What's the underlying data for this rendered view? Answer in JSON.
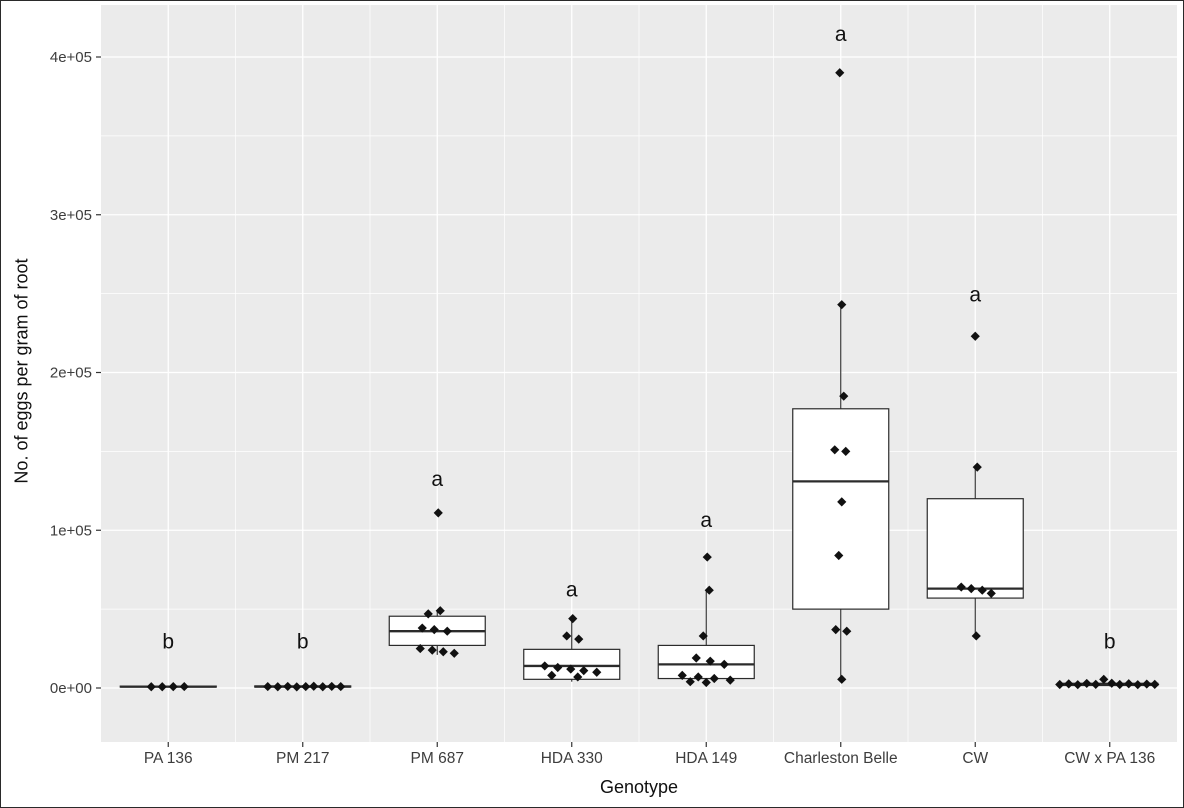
{
  "figure": {
    "y_axis_title": "No. of eggs per gram of root",
    "x_axis_title": "Genotype"
  },
  "chart_data": {
    "type": "boxplot",
    "title": "",
    "xlabel": "Genotype",
    "ylabel": "No. of eggs per gram of root",
    "ylim": [
      -34000,
      433000
    ],
    "grid": "on",
    "legend": "none",
    "colors": {
      "panel": "#ebebeb",
      "grid": "#ffffff",
      "box_fill": "#ffffff",
      "box_stroke": "#2b2b2b",
      "point": "#111111",
      "axis_text": "#3d3d3d",
      "letter_text": "#111111"
    },
    "y_ticks": [
      {
        "value": 0,
        "label": "0e+00"
      },
      {
        "value": 100000,
        "label": "1e+05"
      },
      {
        "value": 200000,
        "label": "2e+05"
      },
      {
        "value": 300000,
        "label": "3e+05"
      },
      {
        "value": 400000,
        "label": "4e+05"
      }
    ],
    "y_minor": [
      50000,
      150000,
      250000,
      350000
    ],
    "groups": [
      {
        "label": "PA 136",
        "letter": "b",
        "letter_value": 25000,
        "stats": {
          "lo": 400,
          "q1": 600,
          "med": 850,
          "q3": 1200,
          "hi": 1500
        },
        "points": [
          {
            "v": 800,
            "dx": -17
          },
          {
            "v": 800,
            "dx": -6
          },
          {
            "v": 850,
            "dx": 5
          },
          {
            "v": 900,
            "dx": 16
          }
        ]
      },
      {
        "label": "PM 217",
        "letter": "b",
        "letter_value": 25000,
        "stats": {
          "lo": 400,
          "q1": 600,
          "med": 900,
          "q3": 1300,
          "hi": 1600
        },
        "points": [
          {
            "v": 900,
            "dx": -35
          },
          {
            "v": 800,
            "dx": -25
          },
          {
            "v": 1000,
            "dx": -15
          },
          {
            "v": 700,
            "dx": -6
          },
          {
            "v": 900,
            "dx": 3
          },
          {
            "v": 1100,
            "dx": 11
          },
          {
            "v": 800,
            "dx": 20
          },
          {
            "v": 1000,
            "dx": 29
          },
          {
            "v": 900,
            "dx": 38
          }
        ]
      },
      {
        "label": "PM 687",
        "letter": "a",
        "letter_value": 128000,
        "stats": {
          "lo": 21000,
          "q1": 27000,
          "med": 36000,
          "q3": 45500,
          "hi": 49000
        },
        "points": [
          {
            "v": 111000,
            "dx": 1
          },
          {
            "v": 49000,
            "dx": 3
          },
          {
            "v": 47000,
            "dx": -9
          },
          {
            "v": 38000,
            "dx": -15
          },
          {
            "v": 37000,
            "dx": -3
          },
          {
            "v": 36000,
            "dx": 10
          },
          {
            "v": 25000,
            "dx": -17
          },
          {
            "v": 24000,
            "dx": -5
          },
          {
            "v": 23000,
            "dx": 6
          },
          {
            "v": 22000,
            "dx": 17
          }
        ]
      },
      {
        "label": "HDA 330",
        "letter": "a",
        "letter_value": 58000,
        "stats": {
          "lo": 4000,
          "q1": 5500,
          "med": 14000,
          "q3": 24500,
          "hi": 44000
        },
        "points": [
          {
            "v": 44000,
            "dx": 1
          },
          {
            "v": 33000,
            "dx": -5
          },
          {
            "v": 31000,
            "dx": 7
          },
          {
            "v": 14000,
            "dx": -27
          },
          {
            "v": 13000,
            "dx": -14
          },
          {
            "v": 12000,
            "dx": -1
          },
          {
            "v": 11000,
            "dx": 12
          },
          {
            "v": 10000,
            "dx": 25
          },
          {
            "v": 8000,
            "dx": -20
          },
          {
            "v": 7000,
            "dx": 6
          }
        ]
      },
      {
        "label": "HDA 149",
        "letter": "a",
        "letter_value": 102000,
        "stats": {
          "lo": 3500,
          "q1": 6000,
          "med": 15000,
          "q3": 27000,
          "hi": 62000
        },
        "points": [
          {
            "v": 83000,
            "dx": 1
          },
          {
            "v": 62000,
            "dx": 3
          },
          {
            "v": 33000,
            "dx": -3
          },
          {
            "v": 19000,
            "dx": -10
          },
          {
            "v": 17000,
            "dx": 4
          },
          {
            "v": 15000,
            "dx": 18
          },
          {
            "v": 8000,
            "dx": -24
          },
          {
            "v": 7000,
            "dx": -8
          },
          {
            "v": 6000,
            "dx": 8
          },
          {
            "v": 5000,
            "dx": 24
          },
          {
            "v": 4000,
            "dx": -16
          },
          {
            "v": 3500,
            "dx": 0
          }
        ]
      },
      {
        "label": "Charleston Belle",
        "letter": "a",
        "letter_value": 410000,
        "stats": {
          "lo": 5500,
          "q1": 50000,
          "med": 131000,
          "q3": 177000,
          "hi": 243000
        },
        "points": [
          {
            "v": 390000,
            "dx": -1
          },
          {
            "v": 243000,
            "dx": 1
          },
          {
            "v": 185000,
            "dx": 3
          },
          {
            "v": 151000,
            "dx": -6
          },
          {
            "v": 150000,
            "dx": 5
          },
          {
            "v": 118000,
            "dx": 1
          },
          {
            "v": 84000,
            "dx": -2
          },
          {
            "v": 37000,
            "dx": -5
          },
          {
            "v": 36000,
            "dx": 6
          },
          {
            "v": 5500,
            "dx": 1
          }
        ]
      },
      {
        "label": "CW",
        "letter": "a",
        "letter_value": 245000,
        "stats": {
          "lo": 33000,
          "q1": 57000,
          "med": 63000,
          "q3": 120000,
          "hi": 140000
        },
        "points": [
          {
            "v": 223000,
            "dx": 0
          },
          {
            "v": 140000,
            "dx": 2
          },
          {
            "v": 64000,
            "dx": -14
          },
          {
            "v": 63000,
            "dx": -4
          },
          {
            "v": 62000,
            "dx": 7
          },
          {
            "v": 60000,
            "dx": 16
          },
          {
            "v": 33000,
            "dx": 1
          }
        ]
      },
      {
        "label": "CW x PA 136",
        "letter": "b",
        "letter_value": 25000,
        "stats": {
          "lo": 1000,
          "q1": 1600,
          "med": 2200,
          "q3": 3000,
          "hi": 4000
        },
        "points": [
          {
            "v": 2200,
            "dx": -50
          },
          {
            "v": 2600,
            "dx": -41
          },
          {
            "v": 2100,
            "dx": -32
          },
          {
            "v": 2900,
            "dx": -23
          },
          {
            "v": 2300,
            "dx": -14
          },
          {
            "v": 5500,
            "dx": -6
          },
          {
            "v": 3000,
            "dx": 2
          },
          {
            "v": 2200,
            "dx": 10
          },
          {
            "v": 2700,
            "dx": 19
          },
          {
            "v": 2100,
            "dx": 28
          },
          {
            "v": 2500,
            "dx": 37
          },
          {
            "v": 2300,
            "dx": 45
          }
        ]
      }
    ]
  }
}
